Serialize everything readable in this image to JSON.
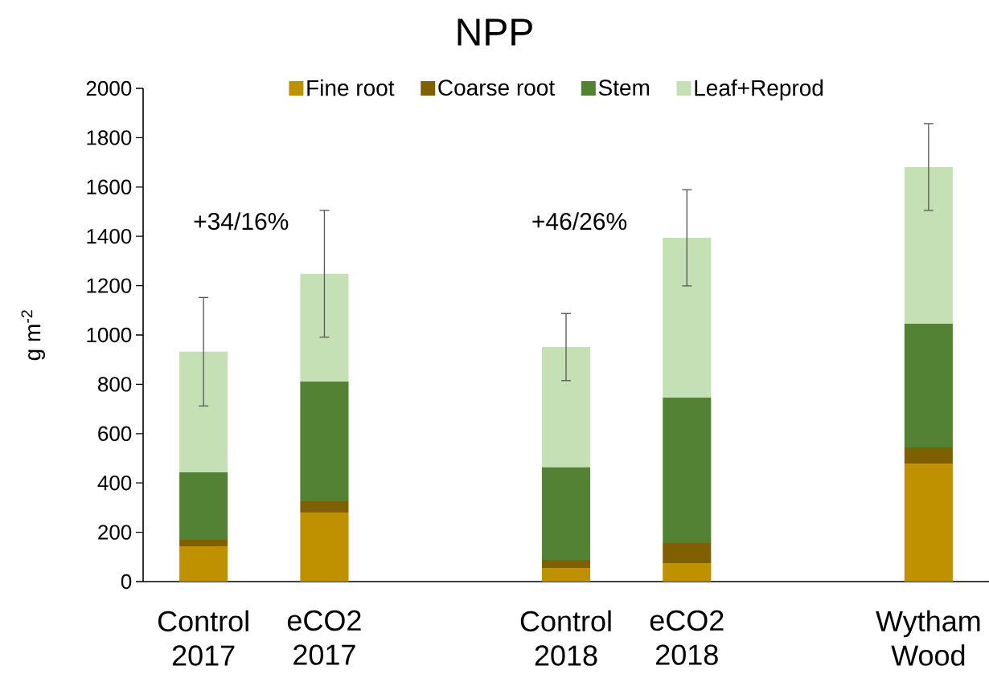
{
  "chart_data": {
    "type": "bar",
    "title": "NPP",
    "ylabel": "g m$^{-2}$",
    "categories": [
      "Control 2017",
      "eCO2 2017",
      null,
      "Control 2018",
      "eCO2 2018",
      null,
      "Wytham Wood"
    ],
    "stacked": true,
    "legend": "top",
    "grid": false,
    "ylim": [
      0,
      2000
    ],
    "yticks": [
      0,
      200,
      400,
      600,
      800,
      1000,
      1200,
      1400,
      1600,
      1800,
      2000
    ],
    "series": [
      {
        "name": "Fine root",
        "color": "#bf9000",
        "values": [
          143,
          280,
          null,
          55,
          75,
          null,
          479
        ]
      },
      {
        "name": "Coarse root",
        "color": "#7f6000",
        "values": [
          26,
          46,
          null,
          33,
          81,
          null,
          65
        ]
      },
      {
        "name": "Stem",
        "color": "#548235",
        "values": [
          274,
          485,
          null,
          375,
          590,
          null,
          502
        ]
      },
      {
        "name": "Leaf+Reprod",
        "color": "#c5e0b4",
        "values": [
          489,
          437,
          null,
          488,
          648,
          null,
          635
        ],
        "errors": [
          220,
          257,
          null,
          136,
          195,
          null,
          176
        ]
      }
    ],
    "annotations": [
      "+34/16%",
      "+46/26%"
    ]
  }
}
